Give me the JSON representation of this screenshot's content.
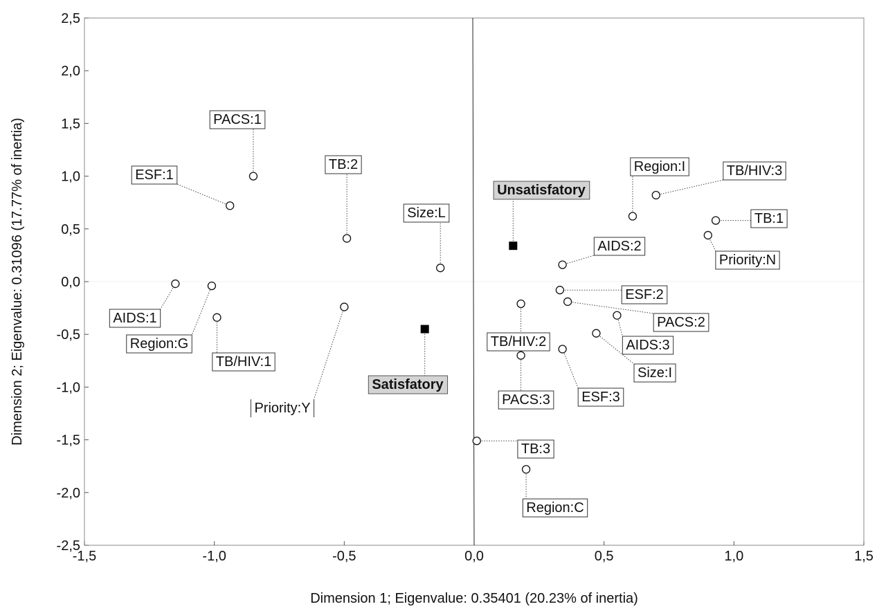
{
  "chart_data": {
    "type": "scatter",
    "title": "",
    "xlabel": "Dimension 1; Eigenvalue: 0.35401 (20.23% of inertia)",
    "ylabel": "Dimension 2; Eigenvalue: 0.31096 (17.77% of inertia)",
    "xlim": [
      -1.5,
      1.5
    ],
    "ylim": [
      -2.5,
      2.5
    ],
    "x_ticks": [
      "-1,5",
      "-1,0",
      "-0,5",
      "0,0",
      "0,5",
      "1,0",
      "1,5"
    ],
    "y_ticks": [
      "2,5",
      "2,0",
      "1,5",
      "1,0",
      "0,5",
      "0,0",
      "-0,5",
      "-1,0",
      "-1,5",
      "-2,0",
      "-2,5"
    ],
    "grid": false,
    "series": [
      {
        "marker": "open-circle",
        "points": [
          {
            "label": "PACS:1",
            "x": -0.85,
            "y": 1.0
          },
          {
            "label": "ESF:1",
            "x": -0.94,
            "y": 0.72
          },
          {
            "label": "TB:2",
            "x": -0.49,
            "y": 0.41
          },
          {
            "label": "Size:L",
            "x": -0.13,
            "y": 0.13
          },
          {
            "label": "AIDS:1",
            "x": -1.15,
            "y": -0.02
          },
          {
            "label": "Region:G",
            "x": -1.01,
            "y": -0.04
          },
          {
            "label": "TB/HIV:1",
            "x": -0.99,
            "y": -0.34
          },
          {
            "label": "Priority:Y",
            "x": -0.5,
            "y": -0.24
          },
          {
            "label": "Region:I",
            "x": 0.61,
            "y": 0.62
          },
          {
            "label": "TB/HIV:3",
            "x": 0.7,
            "y": 0.82
          },
          {
            "label": "TB:1",
            "x": 0.93,
            "y": 0.58
          },
          {
            "label": "Priority:N",
            "x": 0.9,
            "y": 0.44
          },
          {
            "label": "AIDS:2",
            "x": 0.34,
            "y": 0.16
          },
          {
            "label": "ESF:2",
            "x": 0.33,
            "y": -0.08
          },
          {
            "label": "PACS:2",
            "x": 0.36,
            "y": -0.19
          },
          {
            "label": "AIDS:3",
            "x": 0.55,
            "y": -0.32
          },
          {
            "label": "Size:I",
            "x": 0.47,
            "y": -0.49
          },
          {
            "label": "TB/HIV:2",
            "x": 0.18,
            "y": -0.21
          },
          {
            "label": "PACS:3",
            "x": 0.18,
            "y": -0.7
          },
          {
            "label": "ESF:3",
            "x": 0.34,
            "y": -0.64
          },
          {
            "label": "TB:3",
            "x": 0.01,
            "y": -1.51
          },
          {
            "label": "Region:C",
            "x": 0.2,
            "y": -1.78
          }
        ]
      },
      {
        "marker": "filled-square",
        "points": [
          {
            "label": "Unsatisfatory",
            "x": 0.15,
            "y": 0.34
          },
          {
            "label": "Satisfatory",
            "x": -0.19,
            "y": -0.45
          }
        ]
      }
    ]
  }
}
